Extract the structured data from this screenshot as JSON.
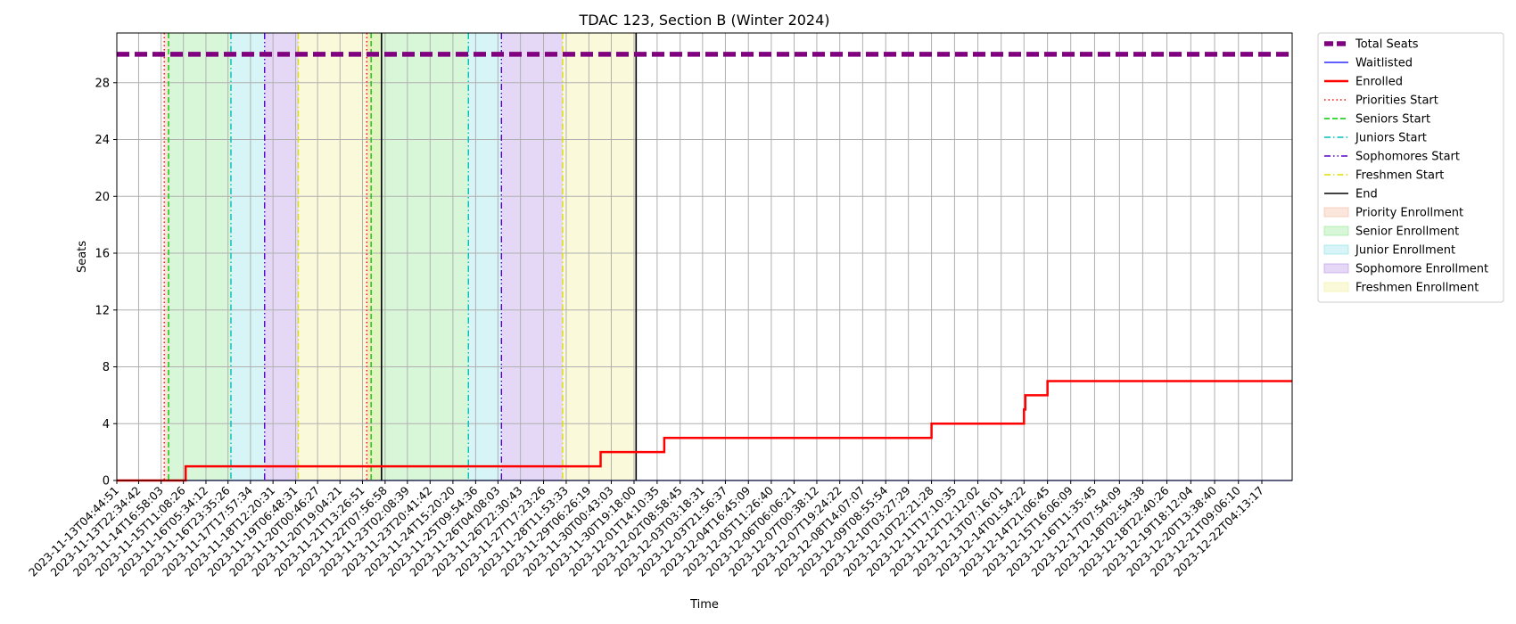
{
  "chart_data": {
    "type": "line",
    "title": "TDAC 123, Section B (Winter 2024)",
    "xlabel": "Time",
    "ylabel": "Seats",
    "ylim": [
      0,
      31.5
    ],
    "yticks": [
      0,
      4,
      8,
      12,
      16,
      20,
      24,
      28
    ],
    "grid": true,
    "legend_placement": "outside-top-right",
    "x_range": [
      "2023-11-13T04:44:51",
      "2023-12-23T05:00:00"
    ],
    "xtick_labels": [
      "2023-11-13T04:44:51",
      "2023-11-13T22:34:42",
      "2023-11-14T16:58:03",
      "2023-11-15T11:08:26",
      "2023-11-16T05:34:12",
      "2023-11-16T23:35:26",
      "2023-11-17T17:57:34",
      "2023-11-18T12:20:31",
      "2023-11-19T06:48:31",
      "2023-11-20T00:46:27",
      "2023-11-20T19:04:21",
      "2023-11-21T13:26:51",
      "2023-11-22T07:56:58",
      "2023-11-23T02:08:39",
      "2023-11-23T20:41:42",
      "2023-11-24T15:20:20",
      "2023-11-25T09:54:36",
      "2023-11-26T04:08:03",
      "2023-11-26T22:30:43",
      "2023-11-27T17:23:26",
      "2023-11-28T11:53:33",
      "2023-11-29T06:26:19",
      "2023-11-30T00:43:03",
      "2023-11-30T19:18:00",
      "2023-12-01T14:10:35",
      "2023-12-02T08:58:45",
      "2023-12-03T03:18:31",
      "2023-12-03T21:56:37",
      "2023-12-04T16:45:09",
      "2023-12-05T11:26:40",
      "2023-12-06T06:06:21",
      "2023-12-07T00:38:12",
      "2023-12-07T19:24:22",
      "2023-12-08T14:07:07",
      "2023-12-09T08:55:54",
      "2023-12-10T03:27:29",
      "2023-12-10T22:21:28",
      "2023-12-11T17:10:35",
      "2023-12-12T12:12:02",
      "2023-12-13T07:16:01",
      "2023-12-14T01:54:22",
      "2023-12-14T21:06:45",
      "2023-12-15T16:06:09",
      "2023-12-16T11:35:45",
      "2023-12-17T07:54:09",
      "2023-12-18T02:54:38",
      "2023-12-18T22:40:26",
      "2023-12-19T18:12:04",
      "2023-12-20T13:38:40",
      "2023-12-21T09:06:10",
      "2023-12-22T04:13:17"
    ],
    "series": [
      {
        "name": "Total Seats",
        "color": "#800080",
        "style": "dashed-thick",
        "points": [
          [
            "2023-11-13T04:44:51",
            30
          ],
          [
            "2023-12-23T05:00:00",
            30
          ]
        ]
      },
      {
        "name": "Waitlisted",
        "color": "#0000ff",
        "style": "solid-thin",
        "points": [
          [
            "2023-11-13T04:44:51",
            0
          ],
          [
            "2023-12-23T05:00:00",
            0
          ]
        ]
      },
      {
        "name": "Enrolled",
        "color": "#ff0000",
        "style": "step",
        "points": [
          [
            "2023-11-13T04:44:51",
            0
          ],
          [
            "2023-11-15T13:00:00",
            1
          ],
          [
            "2023-11-29T16:00:00",
            2
          ],
          [
            "2023-12-01T20:00:00",
            3
          ],
          [
            "2023-12-10T22:21:28",
            4
          ],
          [
            "2023-12-14T01:54:22",
            5
          ],
          [
            "2023-12-14T03:00:00",
            6
          ],
          [
            "2023-12-14T21:06:45",
            7
          ],
          [
            "2023-12-23T05:00:00",
            7
          ]
        ]
      }
    ],
    "vlines": [
      {
        "name": "Priorities Start",
        "color": "#ff0000",
        "style": "dotted",
        "x": [
          "2023-11-14T19:30:00",
          "2023-11-21T17:00:00"
        ]
      },
      {
        "name": "Seniors Start",
        "color": "#00cc00",
        "style": "dashed",
        "x": [
          "2023-11-14T23:00:00",
          "2023-11-21T20:30:00"
        ]
      },
      {
        "name": "Juniors Start",
        "color": "#00bfbf",
        "style": "dashdot",
        "x": [
          "2023-11-17T02:00:00",
          "2023-11-25T04:00:00"
        ]
      },
      {
        "name": "Sophomores Start",
        "color": "#5500cc",
        "style": "dashdotdot",
        "x": [
          "2023-11-18T05:30:00",
          "2023-11-26T07:00:00"
        ]
      },
      {
        "name": "Freshmen Start",
        "color": "#dddd00",
        "style": "dashdot",
        "x": [
          "2023-11-19T09:00:00",
          "2023-11-28T09:00:00"
        ]
      },
      {
        "name": "End",
        "color": "#000000",
        "style": "solid",
        "x": [
          "2023-11-22T05:00:00",
          "2023-11-30T21:00:00"
        ]
      }
    ],
    "spans": [
      {
        "name": "Priority Enrollment",
        "color": "#f4b89c",
        "ranges": [
          [
            "2023-11-14T19:30:00",
            "2023-11-14T23:00:00"
          ],
          [
            "2023-11-21T17:00:00",
            "2023-11-21T20:30:00"
          ]
        ]
      },
      {
        "name": "Senior Enrollment",
        "color": "#8ee88e",
        "ranges": [
          [
            "2023-11-14T23:00:00",
            "2023-11-17T02:00:00"
          ],
          [
            "2023-11-21T20:30:00",
            "2023-11-25T04:00:00"
          ]
        ]
      },
      {
        "name": "Junior Enrollment",
        "color": "#8be0e8",
        "ranges": [
          [
            "2023-11-17T02:00:00",
            "2023-11-18T05:30:00"
          ],
          [
            "2023-11-25T04:00:00",
            "2023-11-26T07:00:00"
          ]
        ]
      },
      {
        "name": "Sophomore Enrollment",
        "color": "#b58ee8",
        "ranges": [
          [
            "2023-11-18T05:30:00",
            "2023-11-19T09:00:00"
          ],
          [
            "2023-11-26T07:00:00",
            "2023-11-28T09:00:00"
          ]
        ]
      },
      {
        "name": "Freshmen Enrollment",
        "color": "#f0f096",
        "ranges": [
          [
            "2023-11-19T09:00:00",
            "2023-11-22T05:00:00"
          ],
          [
            "2023-11-28T09:00:00",
            "2023-11-30T21:00:00"
          ]
        ]
      }
    ],
    "legend": [
      {
        "label": "Total Seats",
        "kind": "line",
        "color": "#800080",
        "style": "dashed-thick"
      },
      {
        "label": "Waitlisted",
        "kind": "line",
        "color": "#0000ff",
        "style": "solid-thin"
      },
      {
        "label": "Enrolled",
        "kind": "line",
        "color": "#ff0000",
        "style": "solid-thick"
      },
      {
        "label": "Priorities Start",
        "kind": "line",
        "color": "#ff0000",
        "style": "dotted"
      },
      {
        "label": "Seniors Start",
        "kind": "line",
        "color": "#00cc00",
        "style": "dashed"
      },
      {
        "label": "Juniors Start",
        "kind": "line",
        "color": "#00bfbf",
        "style": "dashdot"
      },
      {
        "label": "Sophomores Start",
        "kind": "line",
        "color": "#5500cc",
        "style": "dashdotdot"
      },
      {
        "label": "Freshmen Start",
        "kind": "line",
        "color": "#dddd00",
        "style": "dashdot"
      },
      {
        "label": "End",
        "kind": "line",
        "color": "#000000",
        "style": "solid"
      },
      {
        "label": "Priority Enrollment",
        "kind": "patch",
        "color": "#f4b89c"
      },
      {
        "label": "Senior Enrollment",
        "kind": "patch",
        "color": "#8ee88e"
      },
      {
        "label": "Junior Enrollment",
        "kind": "patch",
        "color": "#8be0e8"
      },
      {
        "label": "Sophomore Enrollment",
        "kind": "patch",
        "color": "#b58ee8"
      },
      {
        "label": "Freshmen Enrollment",
        "kind": "patch",
        "color": "#f0f096"
      }
    ]
  }
}
